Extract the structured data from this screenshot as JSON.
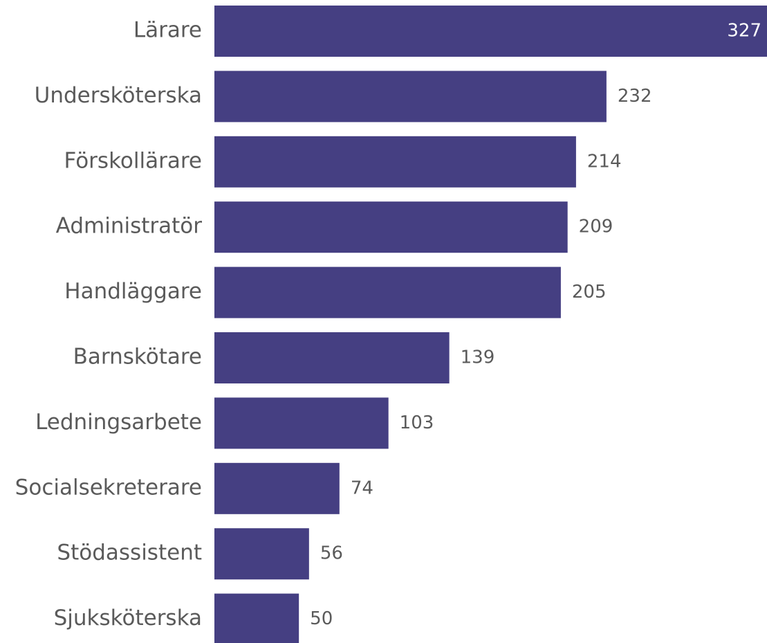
{
  "chart_data": {
    "type": "bar",
    "orientation": "horizontal",
    "categories": [
      "Lärare",
      "Undersköterska",
      "Förskollärare",
      "Administratör",
      "Handläggare",
      "Barnskötare",
      "Ledningsarbete",
      "Socialsekreterare",
      "Stödassistent",
      "Sjuksköterska"
    ],
    "values": [
      327,
      232,
      214,
      209,
      205,
      139,
      103,
      74,
      56,
      50
    ],
    "color": "#453f82"
  }
}
